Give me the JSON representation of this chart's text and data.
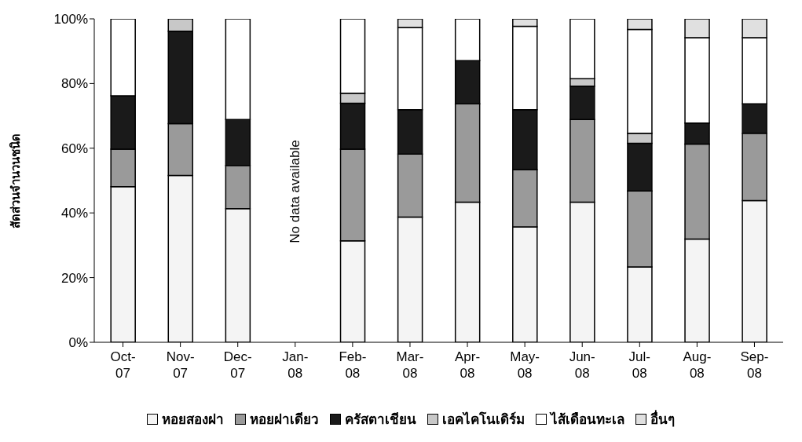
{
  "chart_data": {
    "type": "bar",
    "stacked": true,
    "ylabel": "สัดส่วนจำนวนชนิด",
    "categories": [
      "Oct-07",
      "Nov-07",
      "Dec-07",
      "Jan-08",
      "Feb-08",
      "Mar-08",
      "Apr-08",
      "May-08",
      "Jun-08",
      "Jul-08",
      "Aug-08",
      "Sep-08"
    ],
    "series": [
      {
        "name": "หอยสองฝา",
        "color": "#f4f4f4",
        "values": [
          48.1,
          51.6,
          41.3,
          null,
          31.4,
          38.7,
          43.3,
          35.7,
          43.3,
          23.3,
          31.9,
          43.8
        ]
      },
      {
        "name": "หอยฝาเดียว",
        "color": "#9a9a9a",
        "values": [
          11.6,
          16.0,
          13.4,
          null,
          28.3,
          19.5,
          30.4,
          17.7,
          25.6,
          23.5,
          29.4,
          20.8
        ]
      },
      {
        "name": "ครัสตาเชียน",
        "color": "#1a1a1a",
        "values": [
          16.5,
          28.6,
          14.2,
          null,
          14.2,
          13.7,
          13.4,
          18.5,
          10.3,
          14.7,
          6.5,
          9.1
        ]
      },
      {
        "name": "เอคไคโนเดิร์ม",
        "color": "#c8c8c8",
        "values": [
          0,
          3.8,
          0,
          null,
          3.1,
          0,
          0,
          0,
          2.3,
          3.1,
          0,
          0
        ]
      },
      {
        "name": "ไส้เดือนทะเล",
        "color": "#ffffff",
        "values": [
          23.8,
          0,
          31.1,
          null,
          23.0,
          25.4,
          12.9,
          25.8,
          18.5,
          32.1,
          26.4,
          20.5
        ]
      },
      {
        "name": "อื่นๆ",
        "color": "#e0e0e0",
        "values": [
          0,
          0,
          0,
          null,
          0,
          2.7,
          0,
          2.3,
          0,
          3.3,
          5.8,
          5.8
        ]
      }
    ],
    "ylim": [
      0,
      100
    ],
    "yticks": [
      {
        "value": 0,
        "label": "0%"
      },
      {
        "value": 20,
        "label": "20%"
      },
      {
        "value": 40,
        "label": "40%"
      },
      {
        "value": 60,
        "label": "60%"
      },
      {
        "value": 80,
        "label": "80%"
      },
      {
        "value": 100,
        "label": "100%"
      }
    ],
    "annotations": [
      "No data available"
    ],
    "grid": false,
    "legend": "bottom"
  }
}
